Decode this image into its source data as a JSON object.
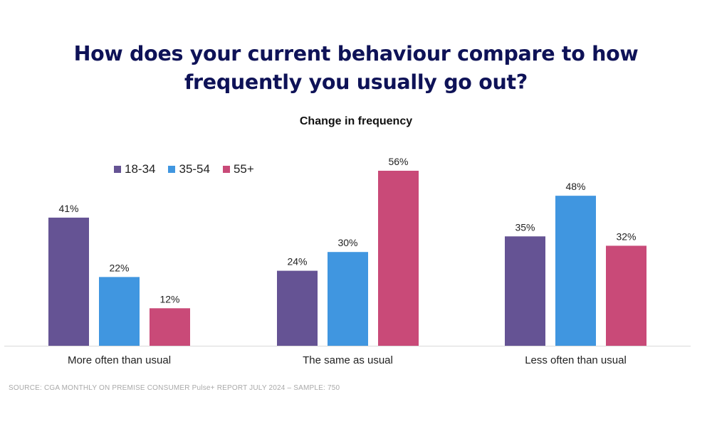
{
  "title_line1": "How does your current behaviour compare to how",
  "title_line2": "frequently you usually go out?",
  "source": "SOURCE: CGA MONTHLY ON PREMISE CONSUMER Pulse+ REPORT JULY 2024  – SAMPLE: 750",
  "chart_data": {
    "type": "bar",
    "title": "Change in frequency",
    "categories": [
      "More often than usual",
      "The same as usual",
      "Less often than usual"
    ],
    "series": [
      {
        "name": "18-34",
        "color": "#655394",
        "values": [
          41,
          24,
          35
        ],
        "labels": [
          "41%",
          "24%",
          "35%"
        ]
      },
      {
        "name": "35-54",
        "color": "#4096e0",
        "values": [
          22,
          30,
          48
        ],
        "labels": [
          "22%",
          "30%",
          "48%"
        ]
      },
      {
        "name": "55+",
        "color": "#c94a78",
        "values": [
          12,
          56,
          32
        ],
        "labels": [
          "12%",
          "56%",
          "32%"
        ]
      }
    ],
    "unit": "%",
    "ylim": [
      0,
      56
    ],
    "grid": false,
    "legend_position": "top-left"
  }
}
